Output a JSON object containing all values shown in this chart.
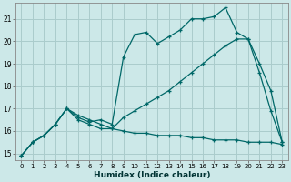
{
  "xlabel": "Humidex (Indice chaleur)",
  "bg_color": "#cce8e8",
  "line_color": "#006868",
  "grid_color": "#aacccc",
  "xlim": [
    -0.5,
    23.5
  ],
  "ylim": [
    14.7,
    21.7
  ],
  "yticks": [
    15,
    16,
    17,
    18,
    19,
    20,
    21
  ],
  "xticks": [
    0,
    1,
    2,
    3,
    4,
    5,
    6,
    7,
    8,
    9,
    10,
    11,
    12,
    13,
    14,
    15,
    16,
    17,
    18,
    19,
    20,
    21,
    22,
    23
  ],
  "line1_x": [
    0,
    1,
    2,
    3,
    4,
    5,
    6,
    7,
    8,
    9,
    10,
    11,
    12,
    13,
    14,
    15,
    16,
    17,
    18,
    19,
    20,
    21,
    22,
    23
  ],
  "line1_y": [
    14.9,
    15.5,
    15.8,
    16.3,
    17.0,
    16.6,
    16.4,
    16.5,
    16.3,
    19.3,
    20.3,
    20.4,
    19.9,
    20.2,
    20.5,
    21.0,
    21.0,
    21.1,
    21.5,
    20.4,
    20.1,
    18.6,
    16.9,
    15.5
  ],
  "line2_x": [
    0,
    1,
    2,
    3,
    4,
    5,
    6,
    7,
    8,
    9,
    10,
    11,
    12,
    13,
    14,
    15,
    16,
    17,
    18,
    19,
    20,
    21,
    22,
    23
  ],
  "line2_y": [
    14.9,
    15.5,
    15.8,
    16.3,
    17.0,
    16.7,
    16.5,
    16.3,
    16.1,
    16.6,
    16.9,
    17.2,
    17.5,
    17.8,
    18.2,
    18.6,
    19.0,
    19.4,
    19.8,
    20.1,
    20.1,
    19.0,
    17.8,
    15.5
  ],
  "line3_x": [
    0,
    1,
    2,
    3,
    4,
    5,
    6,
    7,
    8,
    9,
    10,
    11,
    12,
    13,
    14,
    15,
    16,
    17,
    18,
    19,
    20,
    21,
    22,
    23
  ],
  "line3_y": [
    14.9,
    15.5,
    15.8,
    16.3,
    17.0,
    16.5,
    16.3,
    16.1,
    16.1,
    16.0,
    15.9,
    15.9,
    15.8,
    15.8,
    15.8,
    15.7,
    15.7,
    15.6,
    15.6,
    15.6,
    15.5,
    15.5,
    15.5,
    15.4
  ]
}
